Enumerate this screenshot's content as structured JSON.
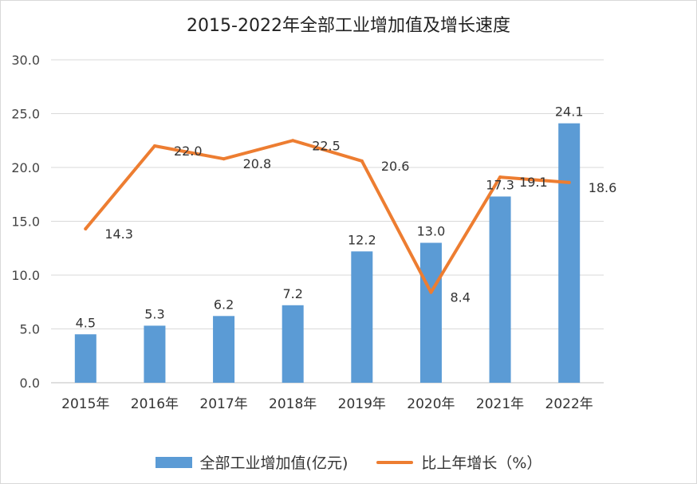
{
  "chart_data": {
    "type": "bar",
    "title": "2015-2022年全部工业增加值及增长速度",
    "categories": [
      "2015年",
      "2016年",
      "2017年",
      "2018年",
      "2019年",
      "2020年",
      "2021年",
      "2022年"
    ],
    "series": [
      {
        "name": "全部工业增加值(亿元)",
        "type": "bar",
        "color": "#5b9bd5",
        "values": [
          4.5,
          5.3,
          6.2,
          7.2,
          12.2,
          13.0,
          17.3,
          24.1
        ],
        "labels": [
          "4.5",
          "5.3",
          "6.2",
          "7.2",
          "12.2",
          "13.0",
          "17.3",
          "24.1"
        ]
      },
      {
        "name": "比上年增长（%）",
        "type": "line",
        "color": "#ed7d31",
        "values": [
          14.3,
          22.0,
          20.8,
          22.5,
          20.6,
          8.4,
          19.1,
          18.6
        ],
        "labels": [
          "14.3",
          "22.0",
          "20.8",
          "22.5",
          "20.6",
          "8.4",
          "19.1",
          "18.6"
        ]
      }
    ],
    "ylim": [
      0,
      30
    ],
    "yticks": [
      "0.0",
      "5.0",
      "10.0",
      "15.0",
      "20.0",
      "25.0",
      "30.0"
    ],
    "ytick_values": [
      0,
      5,
      10,
      15,
      20,
      25,
      30
    ],
    "grid": true,
    "legend": "bottom"
  }
}
